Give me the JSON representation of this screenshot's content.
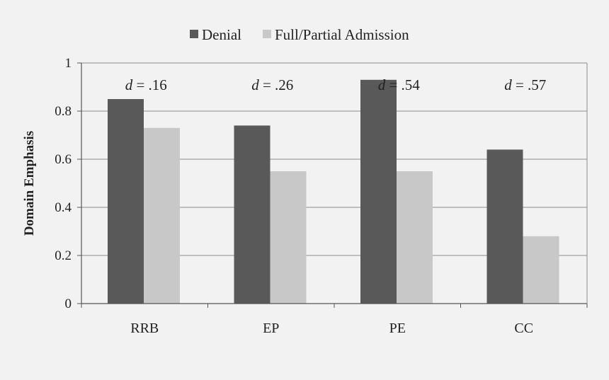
{
  "chart_data": {
    "type": "bar",
    "title": "",
    "xlabel": "",
    "ylabel": "Domain Emphasis",
    "ylim": [
      0,
      1
    ],
    "yticks": [
      "0",
      "0.2",
      "0.4",
      "0.6",
      "0.8",
      "1"
    ],
    "ytick_values": [
      0,
      0.2,
      0.4,
      0.6,
      0.8,
      1
    ],
    "categories": [
      "RRB",
      "EP",
      "PE",
      "CC"
    ],
    "series": [
      {
        "name": "Denial",
        "values": [
          0.85,
          0.74,
          0.93,
          0.64
        ],
        "color": "#595959"
      },
      {
        "name": "Full/Partial Admission",
        "values": [
          0.73,
          0.55,
          0.55,
          0.28
        ],
        "color": "#c8c8c8"
      }
    ],
    "annotations": [
      {
        "prefix": "d",
        "text": " = .16"
      },
      {
        "prefix": "d",
        "text": " = .26"
      },
      {
        "prefix": "d",
        "text": " = .54"
      },
      {
        "prefix": "d",
        "text": " = .57"
      }
    ],
    "grid": true,
    "legend_position": "top-center"
  }
}
